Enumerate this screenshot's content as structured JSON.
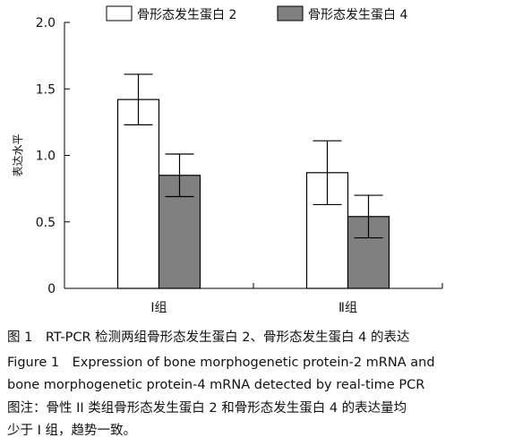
{
  "chart_data": {
    "type": "bar",
    "categories": [
      "Ⅰ组",
      "Ⅱ组"
    ],
    "series": [
      {
        "name": "骨形态发生蛋白 2",
        "values": [
          1.42,
          0.87
        ],
        "errors": [
          0.19,
          0.24
        ],
        "color": "#ffffff"
      },
      {
        "name": "骨形态发生蛋白 4",
        "values": [
          0.85,
          0.54
        ],
        "errors": [
          0.16,
          0.16
        ],
        "color": "#808080"
      }
    ],
    "ylabel": "表达水平",
    "xlabel": "",
    "ylim": [
      0,
      2.0
    ],
    "yticks": [
      "0",
      "0.5",
      "1.0",
      "1.5",
      "2.0"
    ],
    "legend": "top-center",
    "grid": false
  },
  "caption": {
    "line1": "图 1　RT-PCR 检测两组骨形态发生蛋白 2、骨形态发生蛋白 4 的表达",
    "line2": "Figure 1　Expression of bone morphogenetic protein-2 mRNA and",
    "line3": "bone morphogenetic protein-4 mRNA detected by real-time PCR",
    "line4": "图注：骨性 II 类组骨形态发生蛋白 2 和骨形态发生蛋白 4 的表达量均",
    "line5": "少于 I 组，趋势一致。"
  }
}
